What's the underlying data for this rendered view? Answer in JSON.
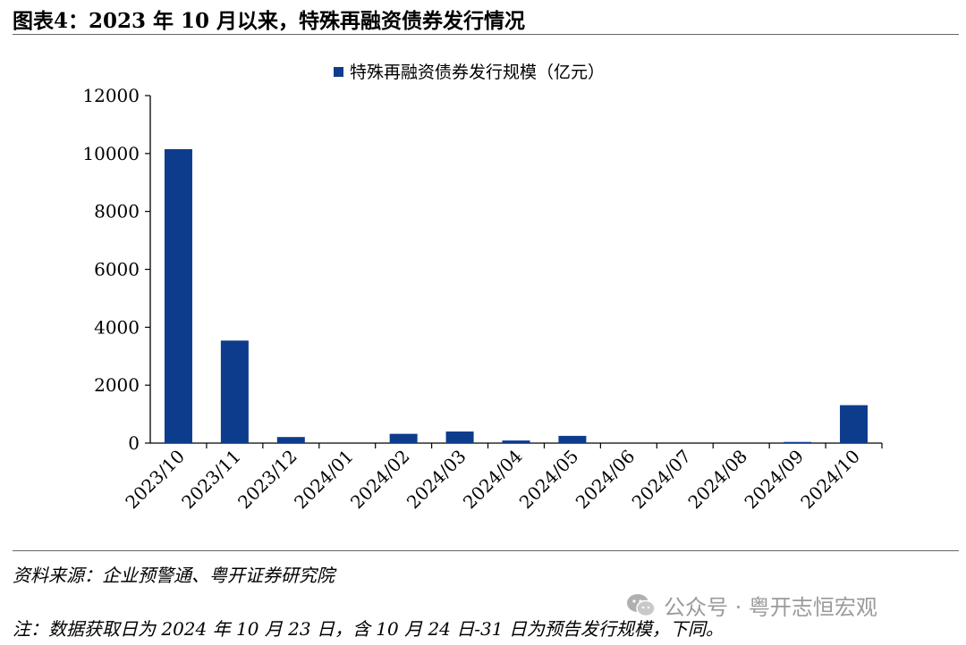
{
  "header": {
    "title": "图表4：2023 年 10 月以来，特殊再融资债券发行情况"
  },
  "footer": {
    "source": "资料来源：企业预警通、粤开证券研究院",
    "note": "注：数据获取日为 2024 年 10 月 23 日，含 10 月 24 日-31 日为预告发行规模，下同。",
    "watermark": "公众号 · 粤开志恒宏观"
  },
  "chart_data": {
    "type": "bar",
    "title": "",
    "xlabel": "",
    "ylabel": "",
    "categories": [
      "2023/10",
      "2023/11",
      "2023/12",
      "2024/01",
      "2024/02",
      "2024/03",
      "2024/04",
      "2024/05",
      "2024/06",
      "2024/07",
      "2024/08",
      "2024/09",
      "2024/10"
    ],
    "series": [
      {
        "name": "特殊再融资债券发行规模（亿元）",
        "color": "#0e3c8c",
        "values": [
          10150,
          3540,
          210,
          0,
          320,
          400,
          90,
          250,
          0,
          0,
          0,
          40,
          1310
        ]
      }
    ],
    "ylim": [
      0,
      12000
    ],
    "yticks": [
      0,
      2000,
      4000,
      6000,
      8000,
      10000,
      12000
    ],
    "legend_position": "top-center",
    "grid": false
  }
}
